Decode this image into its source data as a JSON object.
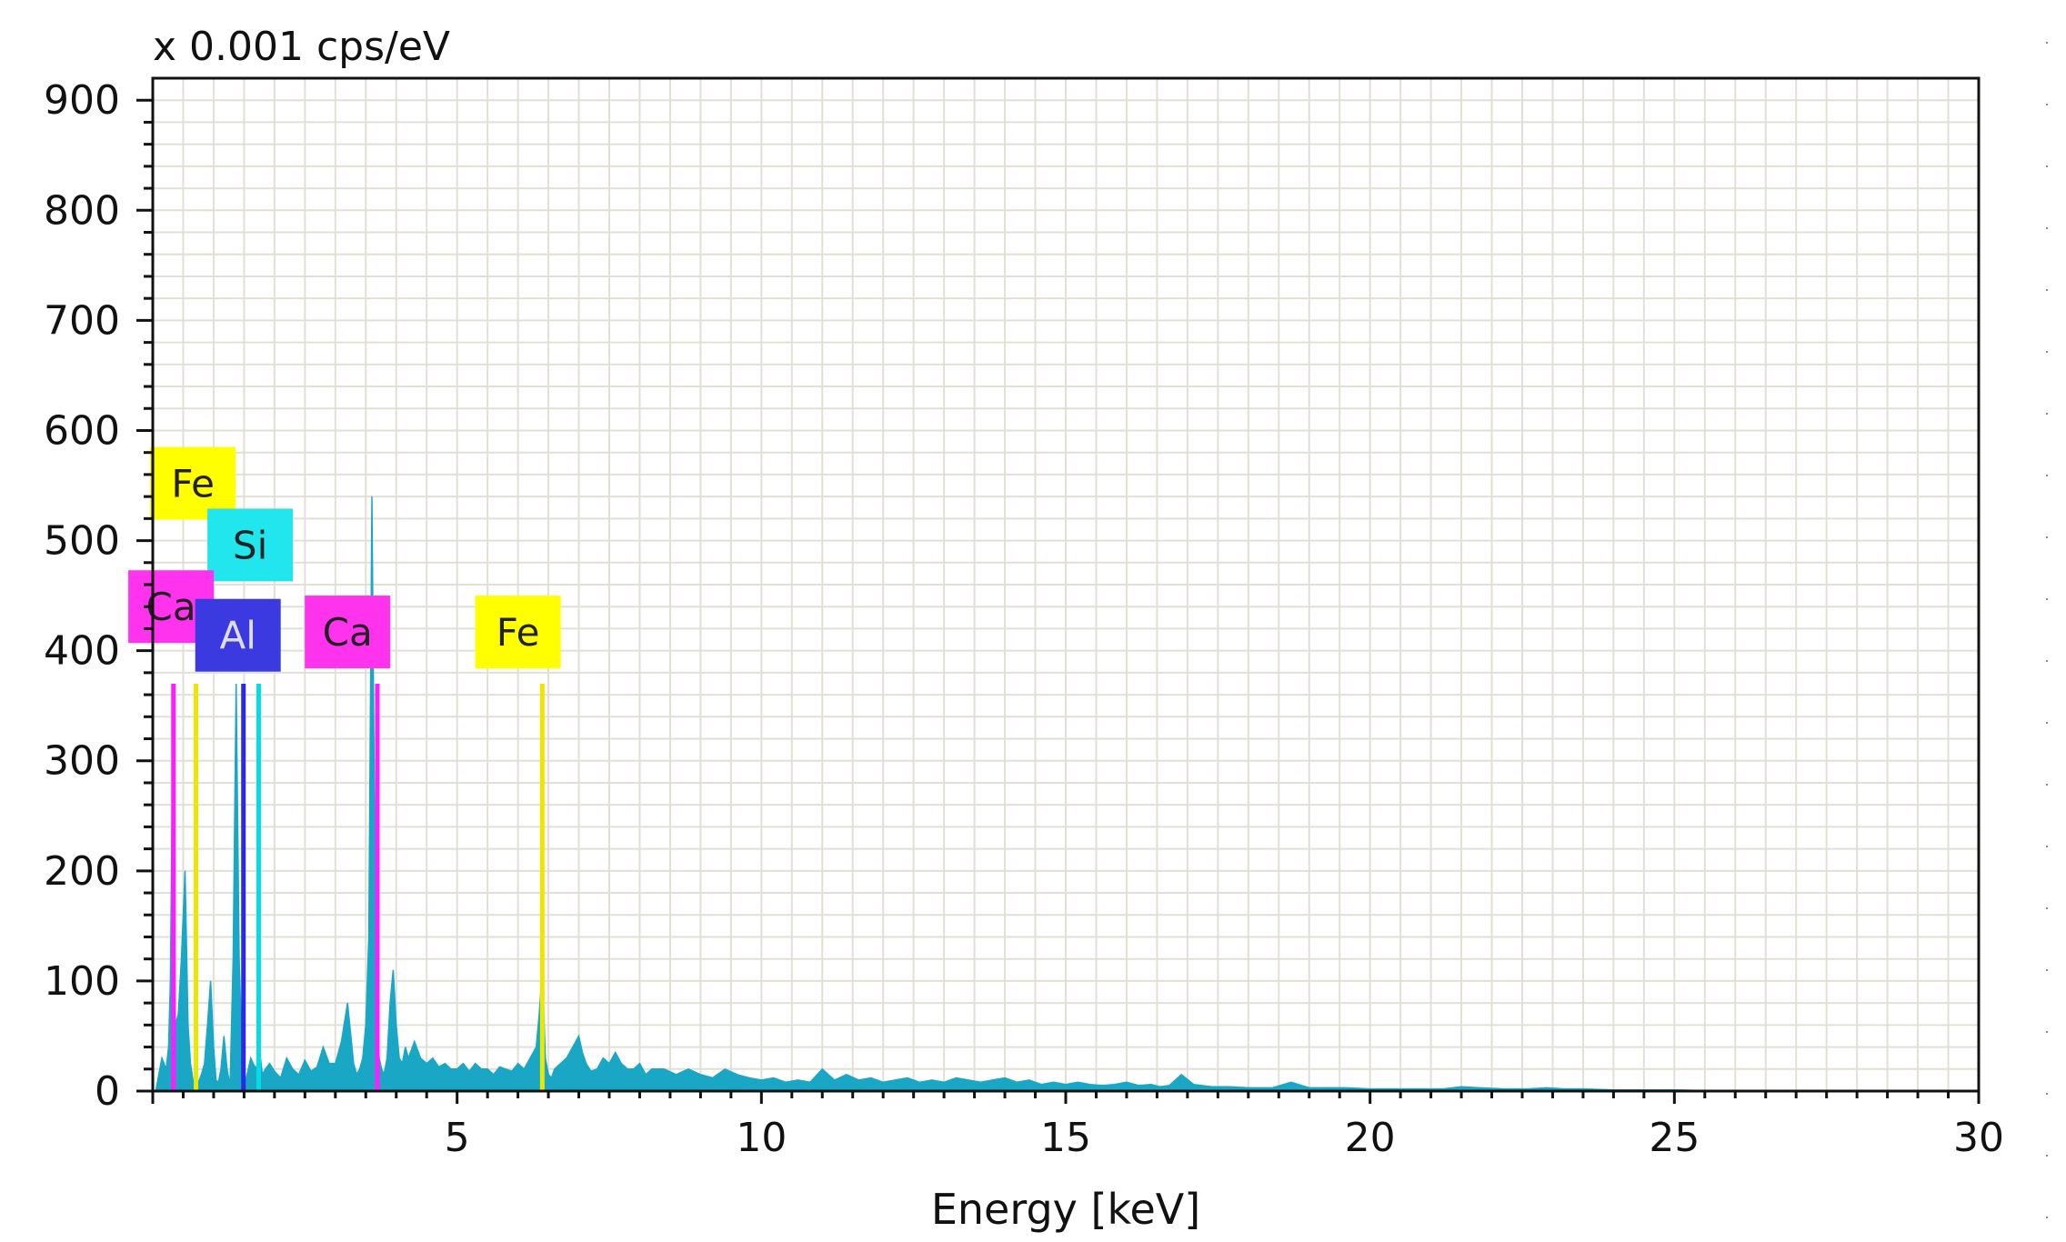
{
  "chart_data": {
    "type": "area",
    "unit_label": "x 0.001 cps/eV",
    "xlabel": "Energy [keV]",
    "ylabel": "",
    "xlim": [
      0,
      30
    ],
    "ylim": [
      0,
      920
    ],
    "x_ticks": [
      5,
      10,
      15,
      20,
      25,
      30
    ],
    "y_ticks": [
      0,
      100,
      200,
      300,
      400,
      500,
      600,
      700,
      800,
      900
    ],
    "grid": true,
    "spectrum_color": "#19A7C5",
    "series": [
      {
        "x": [
          0.05,
          0.15,
          0.22,
          0.26,
          0.29,
          0.33,
          0.37,
          0.42,
          0.47,
          0.53,
          0.58,
          0.62,
          0.66,
          0.7,
          0.75,
          0.8,
          0.85,
          0.9,
          0.95,
          1.0,
          1.04,
          1.08,
          1.12,
          1.17,
          1.22,
          1.27,
          1.32,
          1.37,
          1.42,
          1.47,
          1.52,
          1.57,
          1.61,
          1.65,
          1.7,
          1.75,
          1.8,
          1.85,
          1.92,
          2.0,
          2.1,
          2.2,
          2.3,
          2.4,
          2.5,
          2.6,
          2.7,
          2.8,
          2.9,
          3.0,
          3.1,
          3.2,
          3.3,
          3.35,
          3.4,
          3.45,
          3.5,
          3.55,
          3.6,
          3.65,
          3.69,
          3.72,
          3.76,
          3.8,
          3.85,
          3.9,
          3.95,
          4.0,
          4.05,
          4.1,
          4.15,
          4.2,
          4.3,
          4.4,
          4.5,
          4.6,
          4.7,
          4.8,
          4.9,
          5.0,
          5.1,
          5.2,
          5.3,
          5.4,
          5.5,
          5.6,
          5.7,
          5.8,
          5.9,
          6.0,
          6.1,
          6.2,
          6.3,
          6.35,
          6.4,
          6.45,
          6.5,
          6.55,
          6.6,
          6.7,
          6.8,
          6.9,
          7.0,
          7.06,
          7.12,
          7.2,
          7.3,
          7.4,
          7.5,
          7.6,
          7.7,
          7.8,
          7.9,
          8.0,
          8.1,
          8.2,
          8.4,
          8.6,
          8.8,
          9.0,
          9.2,
          9.4,
          9.6,
          9.8,
          10.0,
          10.2,
          10.4,
          10.6,
          10.8,
          11.0,
          11.2,
          11.4,
          11.6,
          11.8,
          12.0,
          12.2,
          12.4,
          12.6,
          12.8,
          13.0,
          13.2,
          13.4,
          13.6,
          13.8,
          14.0,
          14.2,
          14.4,
          14.6,
          14.8,
          15.0,
          15.2,
          15.4,
          15.6,
          15.8,
          16.0,
          16.2,
          16.4,
          16.55,
          16.7,
          16.9,
          17.1,
          17.4,
          17.7,
          18.0,
          18.2,
          18.4,
          18.7,
          19.0,
          19.3,
          19.6,
          20.0,
          20.4,
          20.8,
          21.2,
          21.5,
          21.8,
          22.2,
          22.6,
          22.9,
          23.2,
          23.5,
          24.0,
          24.5,
          25.0,
          26.0,
          27.0,
          28.0,
          29.0,
          30.0
        ],
        "y": [
          0,
          30,
          20,
          40,
          100,
          330,
          60,
          70,
          120,
          200,
          60,
          25,
          10,
          6,
          8,
          15,
          25,
          60,
          100,
          40,
          10,
          8,
          20,
          50,
          20,
          5,
          120,
          370,
          120,
          30,
          8,
          20,
          30,
          25,
          20,
          40,
          15,
          20,
          25,
          18,
          12,
          30,
          20,
          15,
          28,
          18,
          22,
          40,
          25,
          25,
          45,
          80,
          25,
          15,
          20,
          30,
          60,
          140,
          540,
          200,
          60,
          30,
          20,
          15,
          30,
          80,
          110,
          60,
          30,
          25,
          40,
          30,
          45,
          30,
          25,
          30,
          22,
          25,
          20,
          20,
          25,
          18,
          25,
          20,
          20,
          15,
          22,
          20,
          18,
          25,
          20,
          30,
          40,
          70,
          110,
          30,
          15,
          12,
          20,
          25,
          30,
          40,
          50,
          35,
          25,
          18,
          20,
          30,
          25,
          35,
          25,
          20,
          20,
          25,
          15,
          20,
          20,
          15,
          20,
          15,
          12,
          20,
          15,
          12,
          10,
          12,
          8,
          10,
          8,
          20,
          10,
          15,
          10,
          12,
          8,
          10,
          12,
          8,
          10,
          8,
          12,
          10,
          8,
          10,
          12,
          8,
          10,
          6,
          8,
          6,
          8,
          6,
          5,
          6,
          8,
          5,
          6,
          4,
          5,
          15,
          6,
          4,
          4,
          3,
          3,
          3,
          8,
          3,
          3,
          3,
          2,
          2,
          2,
          2,
          4,
          3,
          2,
          2,
          3,
          2,
          2,
          1,
          1,
          1,
          0,
          0,
          0,
          0,
          0
        ]
      }
    ],
    "element_lines": [
      {
        "element": "Ca",
        "energy": 0.34,
        "color": "#FF1CFF"
      },
      {
        "element": "Fe",
        "energy": 0.71,
        "color": "#E8E800"
      },
      {
        "element": "Al",
        "energy": 1.49,
        "color": "#2A2AE6"
      },
      {
        "element": "Si",
        "energy": 1.74,
        "color": "#00DDE6"
      },
      {
        "element": "Ca",
        "energy": 3.69,
        "color": "#FF1CFF"
      },
      {
        "element": "Fe",
        "energy": 6.4,
        "color": "#E8E800"
      }
    ],
    "element_labels": [
      {
        "text": "Fe",
        "color": "#FFFF00",
        "text_color": "#222222",
        "level": 552,
        "energy": 0.66
      },
      {
        "text": "Si",
        "color": "#22E6EE",
        "text_color": "#222222",
        "level": 496,
        "energy": 1.6
      },
      {
        "text": "Ca",
        "color": "#FF33EE",
        "text_color": "#222222",
        "level": 440,
        "energy": 0.3
      },
      {
        "text": "Al",
        "color": "#3A3AE0",
        "text_color": "#DDDDFF",
        "level": 414,
        "energy": 1.4
      },
      {
        "text": "Ca",
        "color": "#FF33EE",
        "text_color": "#222222",
        "level": 417,
        "energy": 3.2
      },
      {
        "text": "Fe",
        "color": "#FFFF00",
        "text_color": "#222222",
        "level": 417,
        "energy": 6.0
      }
    ]
  }
}
